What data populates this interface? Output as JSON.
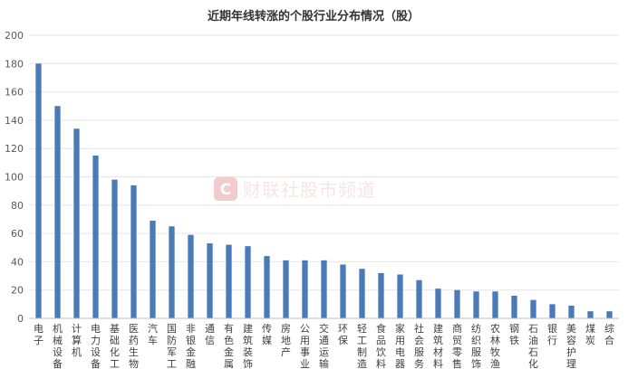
{
  "chart_data": {
    "type": "bar",
    "title": "近期年线转涨的个股行业分布情况（股）",
    "xlabel": "",
    "ylabel": "",
    "ylim": [
      0,
      200
    ],
    "yticks": [
      0,
      20,
      40,
      60,
      80,
      100,
      120,
      140,
      160,
      180,
      200
    ],
    "grid": true,
    "legend": "none",
    "bar_color": "#4a7ab8",
    "categories": [
      "电子",
      "机械设备",
      "计算机",
      "电力设备",
      "基础化工",
      "医药生物",
      "汽车",
      "国防军工",
      "非银金融",
      "通信",
      "有色金属",
      "建筑装饰",
      "传媒",
      "房地产",
      "公用事业",
      "交通运输",
      "环保",
      "轻工制造",
      "食品饮料",
      "家用电器",
      "社会服务",
      "建筑材料",
      "商贸零售",
      "纺织服饰",
      "农林牧渔",
      "钢铁",
      "石油石化",
      "银行",
      "美容护理",
      "煤炭",
      "综合"
    ],
    "values": [
      180,
      150,
      134,
      115,
      98,
      94,
      69,
      65,
      59,
      53,
      52,
      51,
      44,
      41,
      41,
      41,
      38,
      35,
      32,
      31,
      27,
      21,
      20,
      19,
      19,
      16,
      13,
      10,
      9,
      5,
      5
    ]
  },
  "watermark": {
    "text": "财联社股市频道",
    "logo": "C",
    "color": "#e8a3a3"
  }
}
